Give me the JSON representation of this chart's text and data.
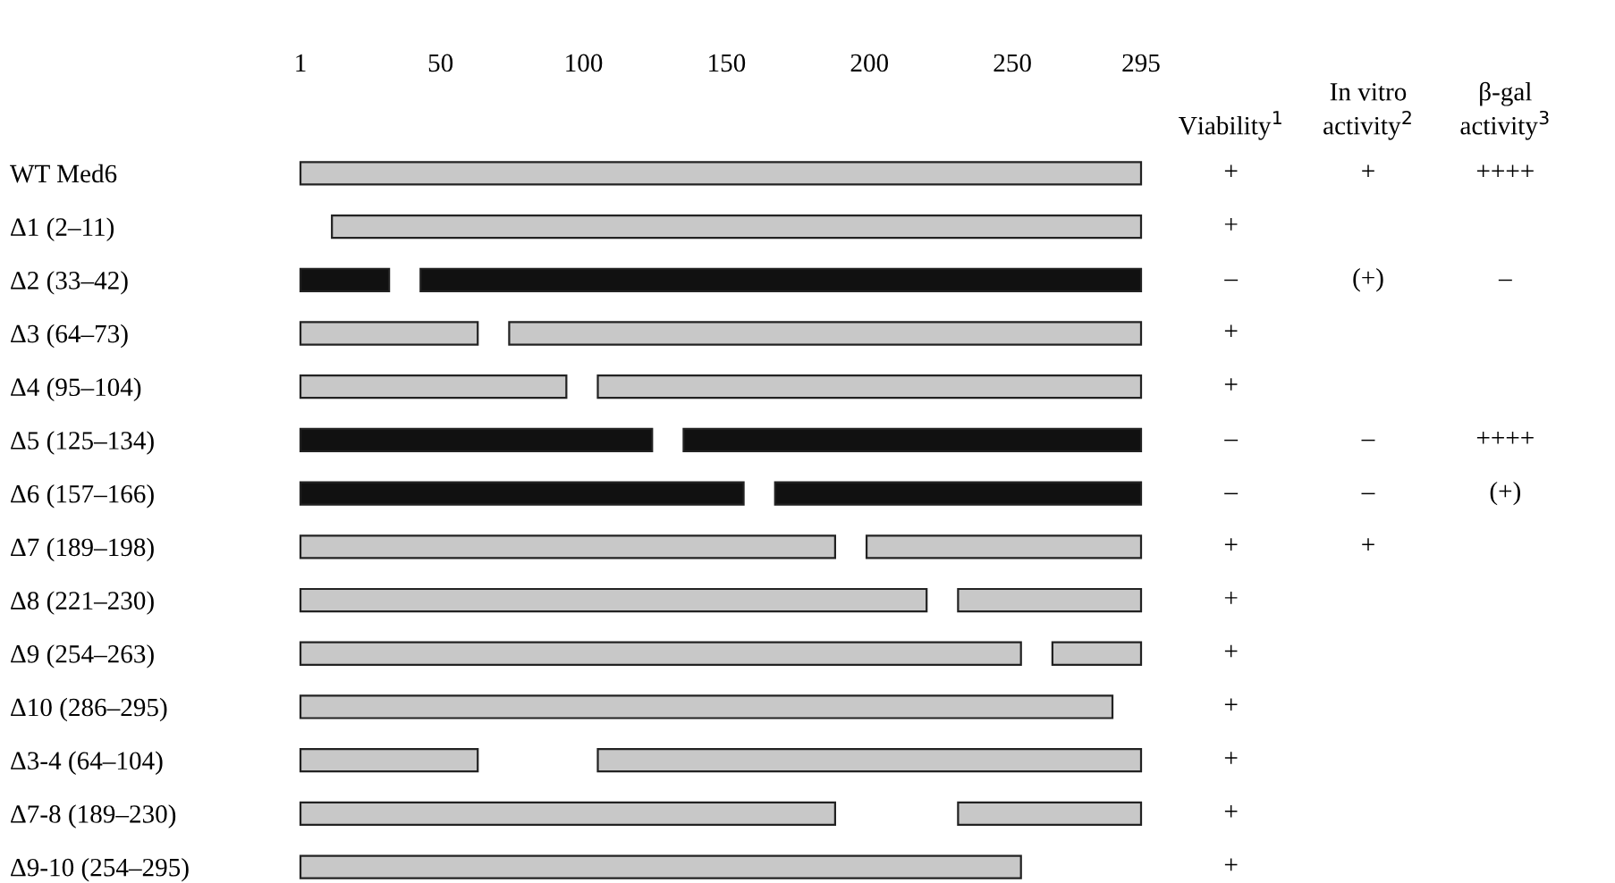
{
  "chart_data": [
    {
      "type": "bar",
      "orientation": "horizontal",
      "categories": [
        "WT Med6",
        "Δ1 (2–11)",
        "Δ2 (33–42)",
        "Δ3 (64–73)",
        "Δ4 (95–104)",
        "Δ5 (125–134)",
        "Δ6 (157–166)",
        "Δ7 (189–198)",
        "Δ8 (221–230)",
        "Δ9 (254–263)",
        "Δ10 (286–295)",
        "Δ3-4 (64–104)",
        "Δ7-8 (189–230)",
        "Δ9-10 (254–295)"
      ],
      "series": [
        {
          "base": [
            1,
            12,
            1,
            1,
            1,
            1,
            1,
            1,
            1,
            1,
            1,
            1,
            1,
            1
          ],
          "values": [
            294,
            283,
            31,
            62,
            93,
            123,
            155,
            187,
            219,
            252,
            284,
            62,
            187,
            252
          ],
          "colors": [
            "#c8c8c8",
            "#c8c8c8",
            "#111111",
            "#c8c8c8",
            "#c8c8c8",
            "#111111",
            "#111111",
            "#c8c8c8",
            "#c8c8c8",
            "#c8c8c8",
            "#c8c8c8",
            "#c8c8c8",
            "#c8c8c8",
            "#c8c8c8"
          ]
        },
        {
          "base": [
            null,
            null,
            43,
            74,
            105,
            135,
            167,
            199,
            231,
            264,
            null,
            105,
            231,
            null
          ],
          "values": [
            null,
            null,
            252,
            221,
            190,
            160,
            128,
            96,
            64,
            31,
            null,
            190,
            64,
            null
          ],
          "colors": [
            "#c8c8c8",
            "#c8c8c8",
            "#111111",
            "#c8c8c8",
            "#c8c8c8",
            "#111111",
            "#111111",
            "#c8c8c8",
            "#c8c8c8",
            "#c8c8c8",
            "#c8c8c8",
            "#c8c8c8",
            "#c8c8c8",
            "#c8c8c8"
          ]
        }
      ],
      "xlim": [
        1,
        295
      ],
      "xticks": [
        1,
        50,
        100,
        150,
        200,
        250,
        295
      ],
      "grid": false,
      "legend": false
    },
    {
      "type": "other",
      "categories": [
        "Viability$^{1}$",
        "In vitro activity$^{2}$",
        "β-gal activity$^{3}$"
      ],
      "cell_labels": [
        [
          "+",
          "+",
          "++++"
        ],
        [
          "+",
          null,
          null
        ],
        [
          "–",
          "(+)",
          "–"
        ],
        [
          "+",
          null,
          null
        ],
        [
          "+",
          null,
          null
        ],
        [
          "–",
          "–",
          "++++"
        ],
        [
          "–",
          "–",
          "(+)"
        ],
        [
          "+",
          "+",
          null
        ],
        [
          "+",
          null,
          null
        ],
        [
          "+",
          null,
          null
        ],
        [
          "+",
          null,
          null
        ],
        [
          "+",
          null,
          null
        ],
        [
          "+",
          null,
          null
        ],
        [
          "+",
          null,
          null
        ]
      ]
    }
  ]
}
